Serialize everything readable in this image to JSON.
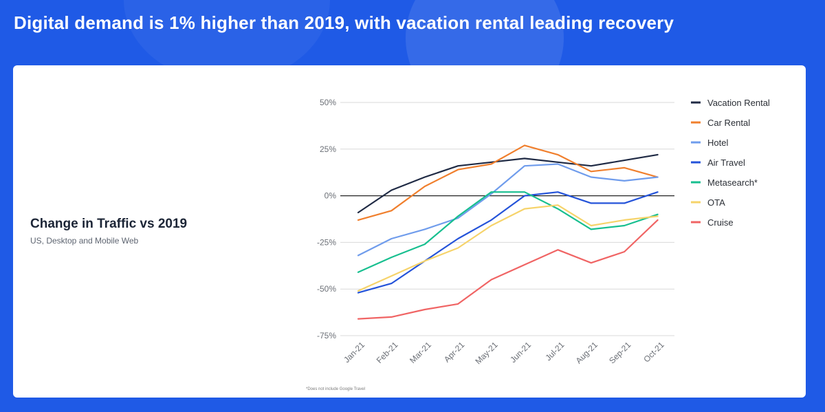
{
  "page": {
    "headline": "Digital demand is 1% higher than 2019, with vacation rental leading recovery",
    "footnote": "*Does not include Google Travel"
  },
  "chart_data": {
    "type": "line",
    "title": "Change in Traffic vs 2019",
    "subtitle": "US, Desktop and Mobile Web",
    "categories": [
      "Jan-21",
      "Feb-21",
      "Mar-21",
      "Apr-21",
      "May-21",
      "Jun-21",
      "Jul-21",
      "Aug-21",
      "Sep-21",
      "Oct-21"
    ],
    "ylim": [
      -75,
      50
    ],
    "yticks": [
      50,
      25,
      0,
      -25,
      -50,
      -75
    ],
    "ytick_labels": [
      "50%",
      "25%",
      "0%",
      "-25%",
      "-50%",
      "-75%"
    ],
    "grid": true,
    "legend_position": "right",
    "series": [
      {
        "name": "Vacation Rental",
        "color": "#1f2a44",
        "values": [
          -9,
          3,
          10,
          16,
          18,
          20,
          18,
          16,
          19,
          22
        ]
      },
      {
        "name": "Car Rental",
        "color": "#f07f2d",
        "values": [
          -13,
          -8,
          5,
          14,
          17,
          27,
          22,
          13,
          15,
          10
        ]
      },
      {
        "name": "Hotel",
        "color": "#6f9cec",
        "values": [
          -32,
          -23,
          -18,
          -12,
          1,
          16,
          17,
          10,
          8,
          10
        ]
      },
      {
        "name": "Air Travel",
        "color": "#2453d9",
        "values": [
          -52,
          -47,
          -35,
          -23,
          -13,
          0,
          2,
          -4,
          -4,
          2
        ]
      },
      {
        "name": "Metasearch*",
        "color": "#17bf8f",
        "values": [
          -41,
          -33,
          -26,
          -11,
          2,
          2,
          -7,
          -18,
          -16,
          -10
        ]
      },
      {
        "name": "OTA",
        "color": "#f6d36a",
        "values": [
          -51,
          -43,
          -35,
          -28,
          -16,
          -7,
          -5,
          -16,
          -13,
          -11
        ]
      },
      {
        "name": "Cruise",
        "color": "#f06464",
        "values": [
          -66,
          -65,
          -61,
          -58,
          -45,
          -37,
          -29,
          -36,
          -30,
          -13
        ]
      }
    ]
  }
}
